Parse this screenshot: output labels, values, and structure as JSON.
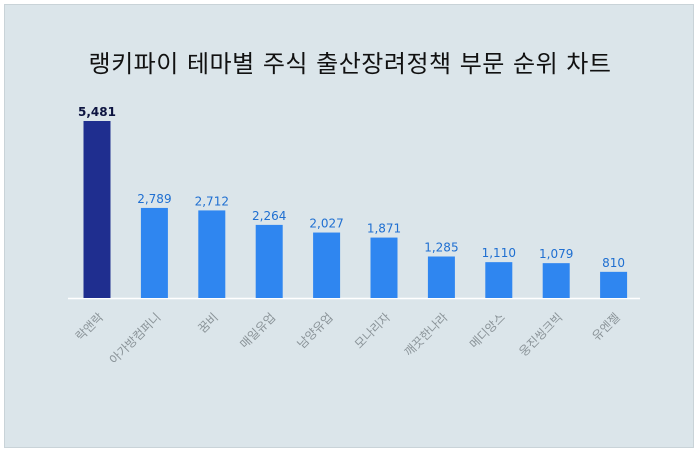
{
  "chart_data": {
    "type": "bar",
    "title": "랭키파이 테마별 주식 출산장려정책 부문 순위 차트",
    "categories": [
      "락앤락",
      "아가방컴퍼니",
      "꿈비",
      "매일유업",
      "남양유업",
      "모나리자",
      "깨끗한나라",
      "메디앙스",
      "웅진씽크빅",
      "유엔젤"
    ],
    "values": [
      5481,
      2789,
      2712,
      2264,
      2027,
      1871,
      1285,
      1110,
      1079,
      810
    ],
    "value_labels": [
      "5,481",
      "2,789",
      "2,712",
      "2,264",
      "2,027",
      "1,871",
      "1,285",
      "1,110",
      "1,079",
      "810"
    ],
    "ylim": [
      0,
      5481
    ],
    "grid": false,
    "legend": "none",
    "colors": {
      "highlight_bar": "#1f2e8f",
      "bar": "#2f86f0",
      "highlight_label": "#0d1440",
      "label": "#1f6fd1",
      "background": "#dbe5ea"
    }
  }
}
